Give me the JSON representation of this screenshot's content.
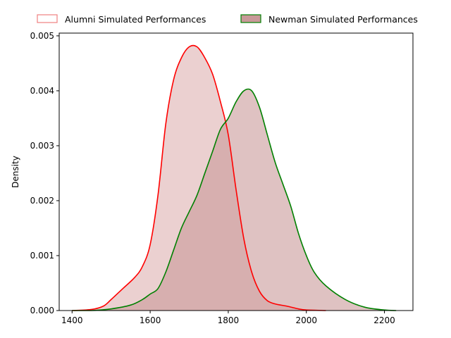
{
  "chart_data": {
    "type": "area",
    "xlabel": "",
    "ylabel": "Density",
    "xlim": [
      1367,
      2273
    ],
    "ylim": [
      0,
      0.00505
    ],
    "xticks": [
      1400,
      1600,
      1800,
      2000,
      2200
    ],
    "xtick_labels": [
      "1400",
      "1600",
      "1800",
      "2000",
      "2200"
    ],
    "yticks": [
      0,
      0.001,
      0.002,
      0.003,
      0.004,
      0.005
    ],
    "ytick_labels": [
      "0.000",
      "0.001",
      "0.002",
      "0.003",
      "0.004",
      "0.005"
    ],
    "legend_placement": "top, above plot",
    "grid": false,
    "series": [
      {
        "name": "Alumni Simulated Performances",
        "color": "#ff0000",
        "fill": "#e8c8c8",
        "fill_opacity": 0.85,
        "x": [
          1400,
          1450,
          1480,
          1500,
          1530,
          1560,
          1580,
          1600,
          1620,
          1640,
          1660,
          1680,
          1700,
          1720,
          1740,
          1760,
          1780,
          1800,
          1820,
          1840,
          1860,
          1880,
          1900,
          1920,
          1950,
          1980,
          2000,
          2050
        ],
        "y": [
          0.0,
          2e-05,
          8e-05,
          0.0002,
          0.0004,
          0.0006,
          0.0008,
          0.0012,
          0.0021,
          0.0034,
          0.0042,
          0.0046,
          0.0048,
          0.0048,
          0.0046,
          0.0043,
          0.0038,
          0.0032,
          0.0022,
          0.0013,
          0.0007,
          0.00035,
          0.00018,
          0.00012,
          8e-05,
          3e-05,
          1e-05,
          0.0
        ]
      },
      {
        "name": "Newman Simulated Performances",
        "color": "#008000",
        "fill": "#c99999",
        "fill_opacity": 0.6,
        "x": [
          1400,
          1450,
          1500,
          1550,
          1580,
          1600,
          1620,
          1640,
          1660,
          1680,
          1700,
          1720,
          1740,
          1760,
          1780,
          1800,
          1820,
          1840,
          1860,
          1880,
          1900,
          1920,
          1940,
          1960,
          1980,
          2000,
          2020,
          2050,
          2100,
          2150,
          2200,
          2230
        ],
        "y": [
          0.0,
          0.0,
          3e-05,
          0.0001,
          0.0002,
          0.0003,
          0.0004,
          0.0007,
          0.0011,
          0.0015,
          0.0018,
          0.0021,
          0.0025,
          0.0029,
          0.0033,
          0.0035,
          0.0038,
          0.004,
          0.004,
          0.0037,
          0.0032,
          0.0027,
          0.0023,
          0.0019,
          0.0014,
          0.001,
          0.0007,
          0.00045,
          0.0002,
          6e-05,
          1e-05,
          0.0
        ]
      }
    ]
  }
}
